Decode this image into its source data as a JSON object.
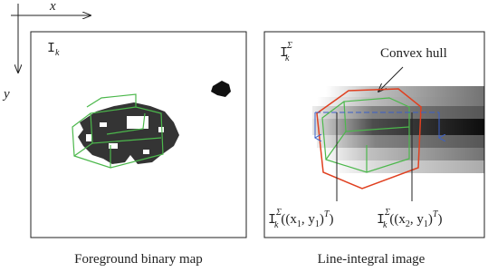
{
  "axes": {
    "x": "x",
    "y": "y"
  },
  "left": {
    "label": {
      "base": "I",
      "sub": "k"
    },
    "caption": "Foreground binary map"
  },
  "right": {
    "label": {
      "base": "I",
      "sub": "k",
      "sup": "Σ"
    },
    "annotation": "Convex hull",
    "points": [
      {
        "base": "I",
        "sub": "k",
        "sup": "Σ",
        "p1": "((x",
        "s1": "1",
        "p2": ", y",
        "s2": "1",
        "p3": ")",
        "s3": "T",
        "p4": ")"
      },
      {
        "base": "I",
        "sub": "k",
        "sup": "Σ",
        "p1": "((x",
        "s1": "2",
        "p2": ", y",
        "s2": "1",
        "p3": ")",
        "s3": "T",
        "p4": ")"
      }
    ],
    "caption": "Line-integral image"
  }
}
